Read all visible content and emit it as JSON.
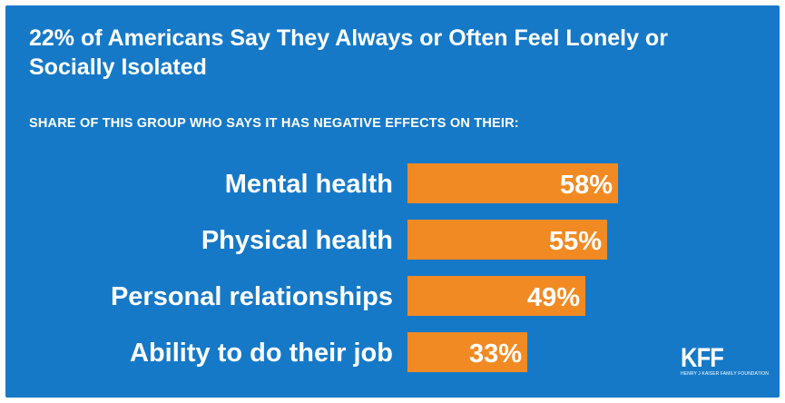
{
  "colors": {
    "background": "#1679c8",
    "bar": "#f28a23",
    "text": "#ffffff"
  },
  "chart_data": {
    "type": "bar",
    "orientation": "horizontal",
    "title": "22% of Americans Say They Always or Often Feel Lonely or Socially Isolated",
    "subtitle": "SHARE OF THIS GROUP WHO SAYS IT HAS NEGATIVE EFFECTS ON THEIR:",
    "categories": [
      "Mental health",
      "Physical health",
      "Personal relationships",
      "Ability to do their job"
    ],
    "values": [
      58,
      55,
      49,
      33
    ],
    "value_labels": [
      "58%",
      "55%",
      "49%",
      "33%"
    ],
    "xlim": [
      0,
      100
    ],
    "grid": false,
    "legend": "none"
  },
  "logo": {
    "name": "KFF",
    "tagline": "HENRY J KAISER FAMILY FOUNDATION"
  }
}
